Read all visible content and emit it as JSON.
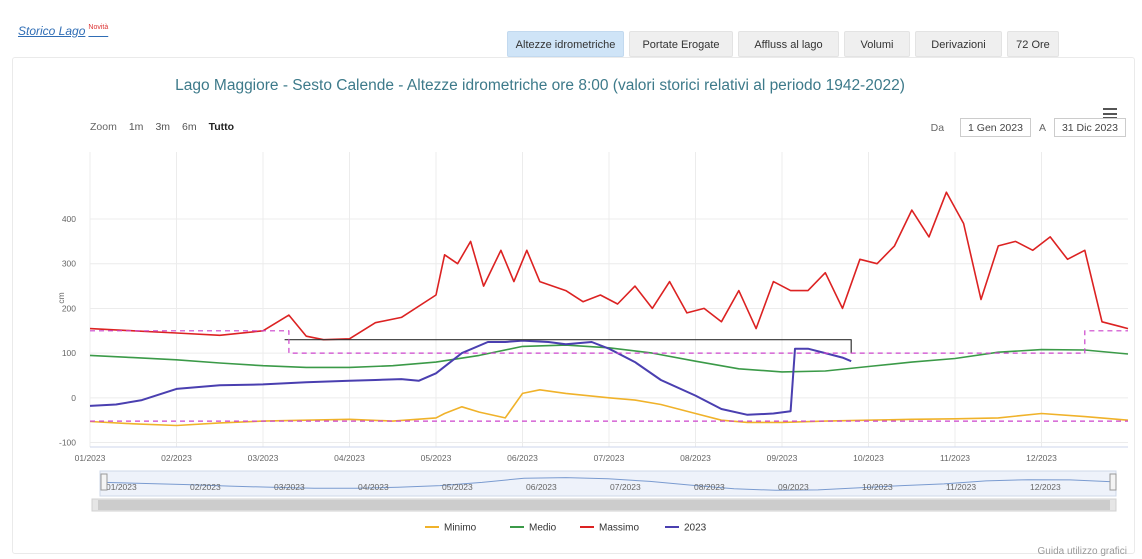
{
  "header": {
    "link_text": "Storico Lago",
    "badge": "Novità",
    "tabs": [
      {
        "label": "Altezze idrometriche",
        "active": true
      },
      {
        "label": "Portate Erogate",
        "active": false
      },
      {
        "label": "Affluss al lago",
        "active": false
      },
      {
        "label": "Volumi",
        "active": false
      },
      {
        "label": "Derivazioni",
        "active": false
      },
      {
        "label": "72 Ore",
        "active": false
      }
    ]
  },
  "zoom": {
    "label": "Zoom",
    "options": [
      "1m",
      "3m",
      "6m",
      "Tutto"
    ],
    "selected": "Tutto"
  },
  "range": {
    "from_label": "Da",
    "from_value": "1 Gen 2023",
    "to_label": "A",
    "to_value": "31 Dic 2023"
  },
  "footer": {
    "guide_link": "Guida utilizzo grafici"
  },
  "colors": {
    "minimo": "#f0b22a",
    "medio": "#3b9a48",
    "massimo": "#dc2222",
    "y2023": "#4a3fb0",
    "dashed": "#cc44cc",
    "black_line": "#333333",
    "title": "#3d7a8a",
    "active_tab": "#cfe4f7"
  },
  "chart_data": {
    "type": "line",
    "title": "Lago Maggiore - Sesto Calende - Altezze idrometriche ore 8:00 (valori storici relativi al periodo 1942-2022)",
    "ylabel": "cm",
    "ylim": [
      -110,
      550
    ],
    "yticks": [
      -100,
      0,
      100,
      200,
      300,
      400
    ],
    "xlim": [
      0,
      12
    ],
    "xlabel": "",
    "xticks": [
      "01/2023",
      "02/2023",
      "03/2023",
      "04/2023",
      "05/2023",
      "06/2023",
      "07/2023",
      "08/2023",
      "09/2023",
      "10/2023",
      "11/2023",
      "12/2023"
    ],
    "navigator_labels": [
      "01/2023",
      "02/2023",
      "03/2023",
      "04/2023",
      "05/2023",
      "06/2023",
      "07/2023",
      "08/2023",
      "09/2023",
      "10/2023",
      "11/2023",
      "12/2023"
    ],
    "legend": [
      "Minimo",
      "Medio",
      "Massimo",
      "2023"
    ],
    "legend_position": "bottom-center",
    "grid": true,
    "series": [
      {
        "name": "Minimo",
        "x": [
          0,
          0.5,
          1,
          1.5,
          2,
          2.5,
          3,
          3.5,
          4,
          4.1,
          4.3,
          4.5,
          4.8,
          5,
          5.2,
          5.5,
          6,
          6.3,
          6.6,
          7,
          7.3,
          7.6,
          8,
          8.5,
          9,
          9.5,
          10,
          10.5,
          11,
          11.5,
          12
        ],
        "values": [
          -53,
          -58,
          -62,
          -56,
          -52,
          -50,
          -48,
          -52,
          -45,
          -35,
          -20,
          -32,
          -45,
          10,
          18,
          10,
          0,
          -5,
          -15,
          -35,
          -50,
          -55,
          -55,
          -52,
          -50,
          -48,
          -47,
          -45,
          -35,
          -42,
          -50
        ]
      },
      {
        "name": "Medio",
        "x": [
          0,
          0.5,
          1,
          1.5,
          2,
          2.5,
          3,
          3.5,
          4,
          4.5,
          5,
          5.5,
          6,
          6.5,
          7,
          7.5,
          8,
          8.5,
          9,
          9.5,
          10,
          10.5,
          11,
          11.5,
          12
        ],
        "values": [
          95,
          90,
          85,
          78,
          72,
          68,
          68,
          72,
          80,
          95,
          115,
          118,
          112,
          100,
          82,
          65,
          58,
          60,
          70,
          80,
          88,
          102,
          108,
          107,
          98
        ]
      },
      {
        "name": "Massimo",
        "x": [
          0,
          0.5,
          1,
          1.5,
          2,
          2.3,
          2.5,
          2.7,
          3,
          3.3,
          3.6,
          4,
          4.1,
          4.25,
          4.4,
          4.55,
          4.75,
          4.9,
          5.05,
          5.2,
          5.35,
          5.5,
          5.7,
          5.9,
          6.1,
          6.3,
          6.5,
          6.7,
          6.9,
          7.1,
          7.3,
          7.5,
          7.7,
          7.9,
          8.1,
          8.3,
          8.5,
          8.7,
          8.9,
          9.1,
          9.3,
          9.5,
          9.7,
          9.9,
          10.1,
          10.3,
          10.5,
          10.7,
          10.9,
          11.1,
          11.3,
          11.5,
          11.7,
          11.9,
          12
        ],
        "values": [
          155,
          150,
          145,
          140,
          150,
          185,
          138,
          130,
          132,
          168,
          180,
          230,
          320,
          300,
          350,
          250,
          330,
          260,
          330,
          260,
          250,
          240,
          215,
          230,
          210,
          250,
          200,
          260,
          190,
          200,
          170,
          240,
          155,
          260,
          240,
          240,
          280,
          200,
          310,
          300,
          340,
          420,
          360,
          460,
          390,
          220,
          340,
          350,
          330,
          360,
          310,
          330,
          170,
          160,
          155
        ]
      },
      {
        "name": "2023",
        "x": [
          0,
          0.3,
          0.6,
          1,
          1.5,
          2,
          2.5,
          3,
          3.3,
          3.6,
          3.8,
          4,
          4.3,
          4.6,
          4.8,
          5,
          5.3,
          5.5,
          5.8,
          6,
          6.3,
          6.6,
          7,
          7.3,
          7.6,
          7.9,
          8.1,
          8.15,
          8.3,
          8.5,
          8.7,
          8.8
        ],
        "values": [
          -18,
          -15,
          -5,
          20,
          28,
          30,
          35,
          38,
          40,
          42,
          38,
          55,
          100,
          125,
          125,
          128,
          125,
          120,
          125,
          110,
          80,
          40,
          5,
          -25,
          -38,
          -35,
          -30,
          110,
          110,
          100,
          90,
          82
        ]
      },
      {
        "name": "Storico max (nero)",
        "x": [
          2.25,
          8.8,
          8.8
        ],
        "values": [
          130,
          130,
          100
        ]
      },
      {
        "name": "Soglie (tratteggio)",
        "x": [
          0,
          2.3,
          2.3,
          11.5,
          11.5,
          12
        ],
        "values": [
          150,
          150,
          100,
          100,
          150,
          150
        ]
      },
      {
        "name": "Soglia inferiore (tratteggio)",
        "x": [
          0,
          12
        ],
        "values": [
          -52,
          -52
        ]
      }
    ]
  }
}
